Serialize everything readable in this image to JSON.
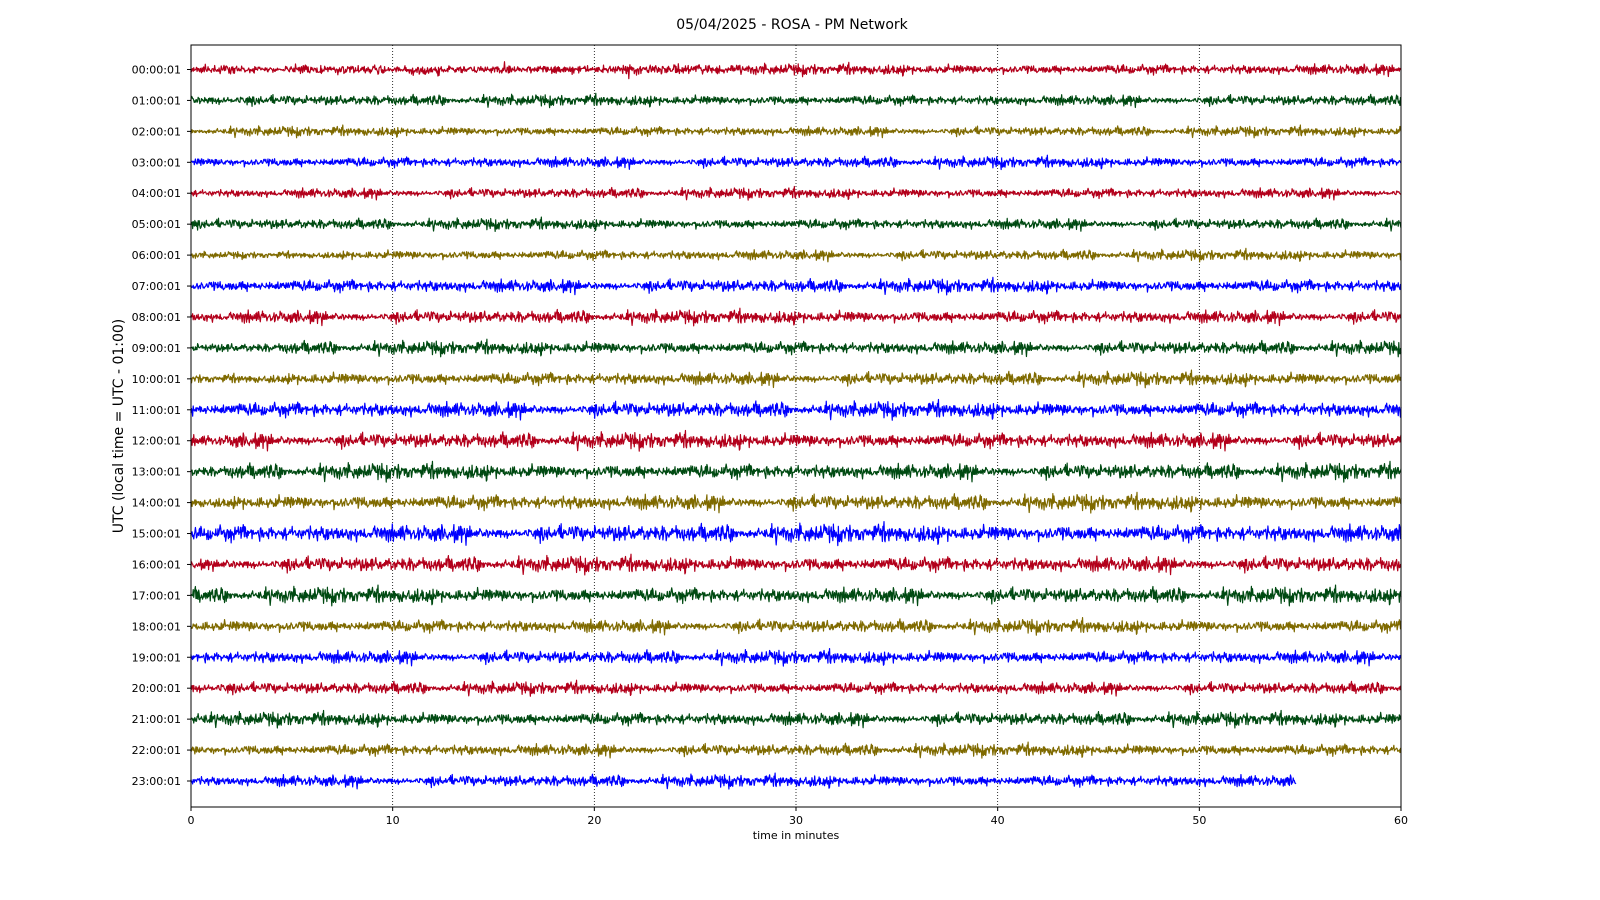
{
  "chart_data": {
    "type": "line",
    "title": "05/04/2025 - ROSA - PM Network",
    "xlabel": "time in minutes",
    "ylabel": "UTC (local time = UTC - 01:00)",
    "xlim": [
      0,
      60
    ],
    "xticks": [
      0,
      10,
      20,
      30,
      40,
      50,
      60
    ],
    "grid": "vertical dotted lines at x ticks",
    "row_labels": [
      "00:00:01",
      "01:00:01",
      "02:00:01",
      "03:00:01",
      "04:00:01",
      "05:00:01",
      "06:00:01",
      "07:00:01",
      "08:00:01",
      "09:00:01",
      "10:00:01",
      "11:00:01",
      "12:00:01",
      "13:00:01",
      "14:00:01",
      "15:00:01",
      "16:00:01",
      "17:00:01",
      "18:00:01",
      "19:00:01",
      "20:00:01",
      "21:00:01",
      "22:00:01",
      "23:00:01"
    ],
    "row_colors": [
      "#b3001b",
      "#004a12",
      "#7f6a00",
      "#0000ff"
    ],
    "series_end_minutes": [
      60,
      60,
      60,
      60,
      60,
      60,
      60,
      60,
      60,
      60,
      60,
      60,
      60,
      60,
      60,
      60,
      60,
      60,
      60,
      60,
      60,
      60,
      60,
      54.8
    ],
    "noise_amplitude": [
      0.18,
      0.18,
      0.16,
      0.18,
      0.17,
      0.18,
      0.17,
      0.22,
      0.22,
      0.22,
      0.22,
      0.26,
      0.26,
      0.26,
      0.26,
      0.3,
      0.26,
      0.26,
      0.22,
      0.22,
      0.2,
      0.22,
      0.2,
      0.2
    ]
  }
}
